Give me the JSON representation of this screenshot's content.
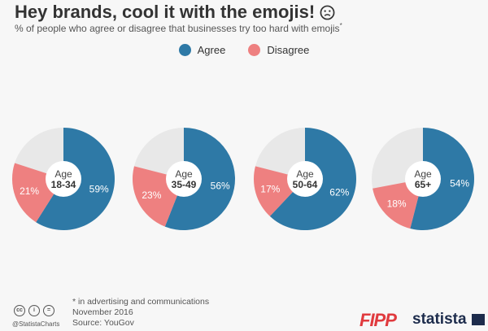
{
  "title": "Hey brands, cool it with the emojis!",
  "subtitle": "% of people who agree or disagree that businesses try too hard with emojis",
  "subtitle_mark": "*",
  "legend": [
    {
      "label": "Agree",
      "color": "#2e79a6"
    },
    {
      "label": "Disagree",
      "color": "#ee8080"
    }
  ],
  "chart_data": {
    "type": "pie",
    "series_names": [
      "Agree",
      "Disagree"
    ],
    "colors": {
      "agree": "#2e79a6",
      "disagree": "#ee8080",
      "rest": "#e8e8e8"
    },
    "groups": [
      {
        "label_top": "Age",
        "label_bottom": "18-34",
        "agree": 59,
        "disagree": 21
      },
      {
        "label_top": "Age",
        "label_bottom": "35-49",
        "agree": 56,
        "disagree": 23
      },
      {
        "label_top": "Age",
        "label_bottom": "50-64",
        "agree": 62,
        "disagree": 17
      },
      {
        "label_top": "Age",
        "label_bottom": "65+",
        "agree": 54,
        "disagree": 18
      }
    ]
  },
  "footnote": {
    "line1": "* in advertising and communications",
    "line2": "November 2016",
    "line3": "Source: YouGov"
  },
  "license_icons": [
    "cc",
    "i",
    "="
  ],
  "handle": "@StatistaCharts",
  "brands": {
    "fipp": "FIPP",
    "statista": "statista"
  }
}
